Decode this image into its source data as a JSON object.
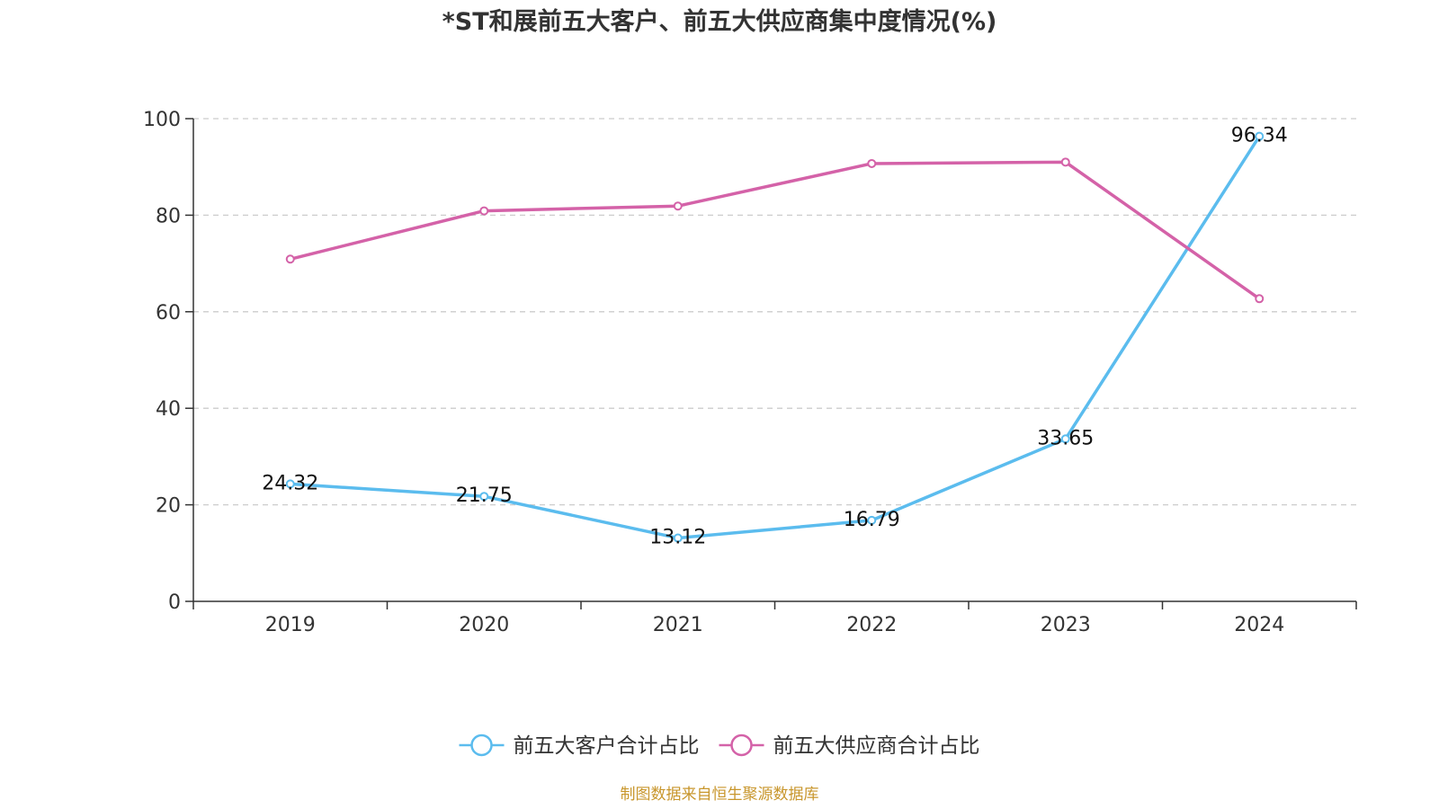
{
  "chart_data": {
    "type": "line",
    "title": "*ST和展前五大客户、前五大供应商集中度情况(%)",
    "categories": [
      "2019",
      "2020",
      "2021",
      "2022",
      "2023",
      "2024"
    ],
    "ylim": [
      0,
      100
    ],
    "yticks": [
      0,
      20,
      40,
      60,
      80,
      100
    ],
    "grid": true,
    "legend_position": "bottom",
    "series": [
      {
        "name": "前五大客户合计占比",
        "color": "#5bbcee",
        "values": [
          24.32,
          21.75,
          13.12,
          16.79,
          33.65,
          96.34
        ],
        "labels": [
          "24.32",
          "21.75",
          "13.12",
          "16.79",
          "33.65",
          "96.34"
        ]
      },
      {
        "name": "前五大供应商合计占比",
        "color": "#d462a8",
        "values": [
          70.9,
          80.9,
          81.9,
          90.7,
          91.0,
          62.7
        ]
      }
    ],
    "source": "制图数据来自恒生聚源数据库",
    "source_color": "#c8962c"
  }
}
